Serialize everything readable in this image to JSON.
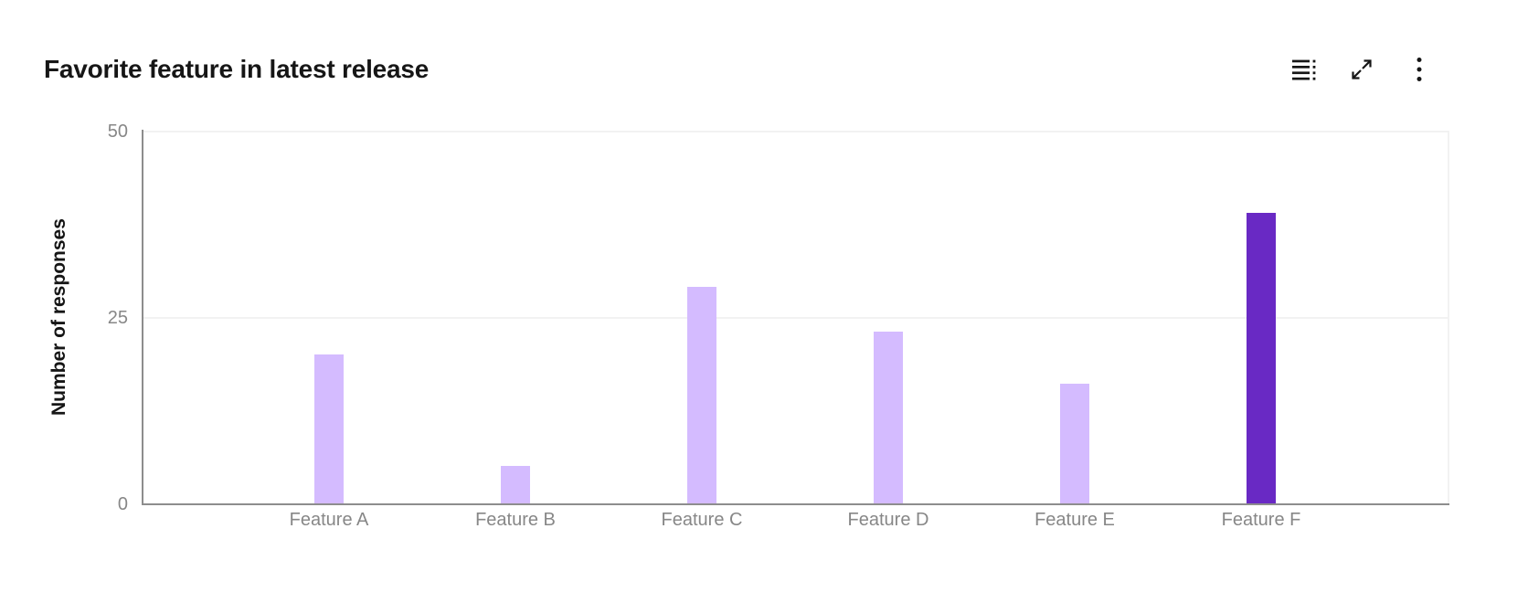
{
  "header": {
    "title": "Favorite feature in latest release",
    "toolbar": {
      "show_data_table_label": "Show as data table",
      "expand_label": "Expand chart",
      "overflow_menu_label": "More options"
    }
  },
  "chart_data": {
    "type": "bar",
    "title": "Favorite feature in latest release",
    "categories": [
      "Feature A",
      "Feature B",
      "Feature C",
      "Feature D",
      "Feature E",
      "Feature F"
    ],
    "values": [
      20,
      5,
      29,
      23,
      16,
      39
    ],
    "xlabel": "",
    "ylabel": "Number of responses",
    "ylim": [
      0,
      50
    ],
    "yticks": [
      0,
      25,
      50
    ],
    "grid": "horizontal",
    "legend": "none",
    "bar_color_default": "#d4bbff",
    "bar_color_highlight": "#6929c4",
    "highlight_index": 5
  },
  "colors": {
    "background": "#ffffff",
    "title_text": "#161616",
    "axis_title_text": "#161616",
    "tick_label_text": "#878787",
    "axis_line": "#8d8d8d",
    "gridline": "#f2f2f2",
    "icon": "#161616"
  }
}
